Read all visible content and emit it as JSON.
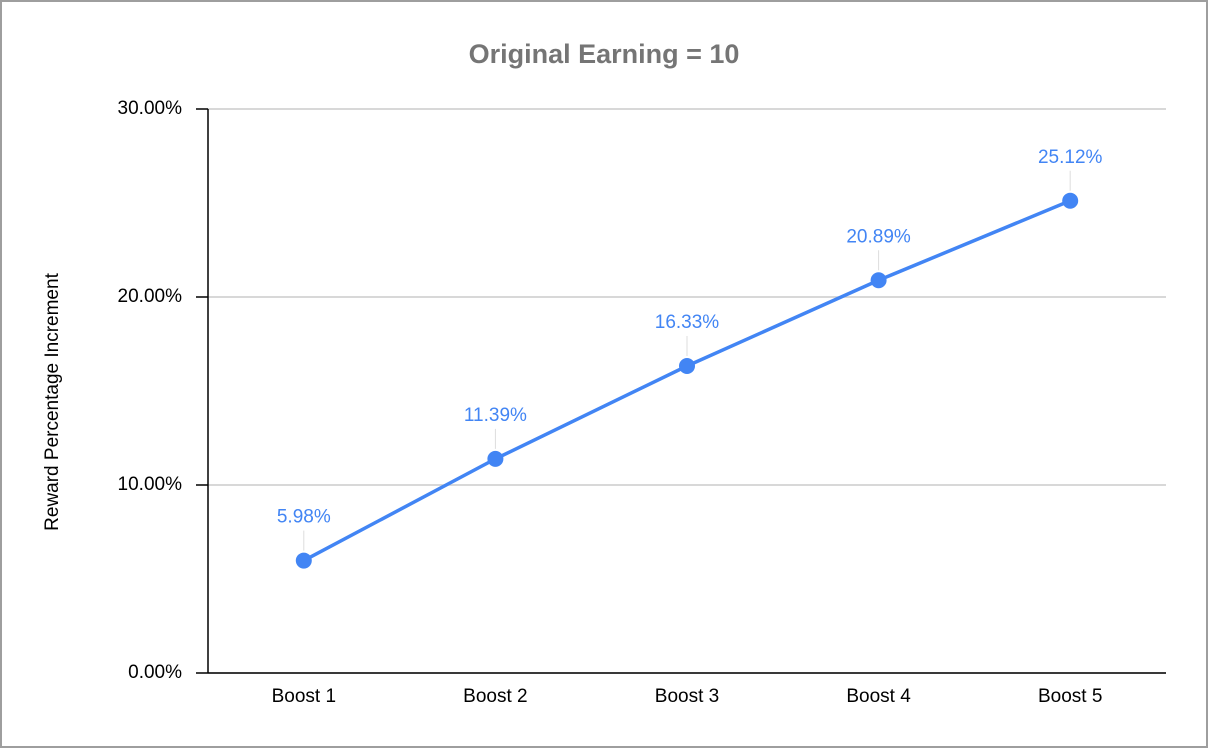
{
  "chart_data": {
    "type": "line",
    "title": "Original Earning = 10",
    "y_label": "Reward Percentage Increment",
    "categories": [
      "Boost 1",
      "Boost 2",
      "Boost 3",
      "Boost 4",
      "Boost 5"
    ],
    "series": [
      {
        "name": "Reward Percentage Increment",
        "color": "#4285f4",
        "values": [
          5.98,
          11.39,
          16.33,
          20.89,
          25.12
        ],
        "value_labels": [
          "5.98%",
          "11.39%",
          "16.33%",
          "20.89%",
          "25.12%"
        ]
      }
    ],
    "ylim": [
      0,
      30
    ],
    "yticks": [
      {
        "value": 0,
        "label": "0.00%"
      },
      {
        "value": 10,
        "label": "10.00%"
      },
      {
        "value": 20,
        "label": "20.00%"
      },
      {
        "value": 30,
        "label": "30.00%"
      }
    ],
    "grid": true
  }
}
